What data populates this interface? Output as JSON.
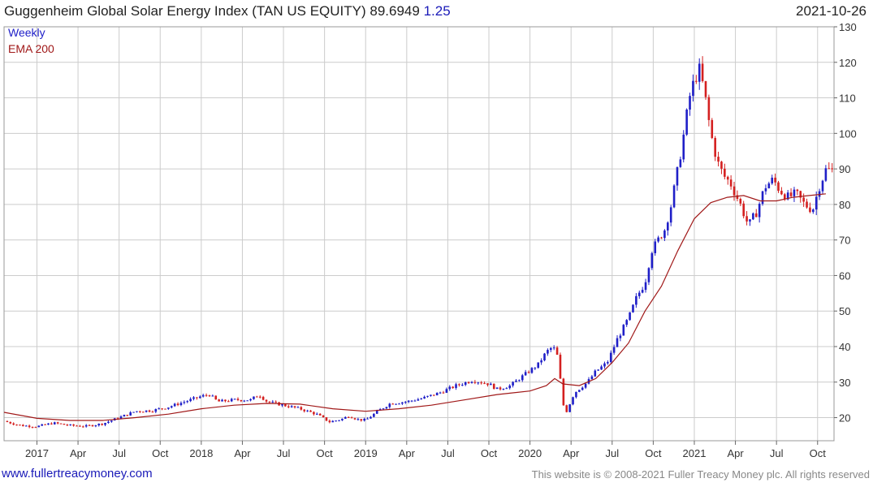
{
  "header": {
    "title": "Guggenheim Global Solar Energy Index (TAN US EQUITY)",
    "price": "89.6949",
    "change": "1.25",
    "date": "2021-10-26"
  },
  "footer": {
    "site": "www.fullertreacymoney.com",
    "copyright": "This website is © 2008-2021 Fuller Treacy Money plc. All rights reserved"
  },
  "colors": {
    "up": "#1f1fc8",
    "down": "#d42020",
    "ema": "#a01818",
    "grid": "#cccccc"
  },
  "chart_data": {
    "type": "candlestick",
    "legend": [
      "Weekly",
      "EMA 200"
    ],
    "legend_colors": [
      "#1f1fc8",
      "#a01818"
    ],
    "y_ticks": [
      20,
      30,
      40,
      50,
      60,
      70,
      80,
      90,
      100,
      110,
      120,
      130
    ],
    "ylim": [
      13.5,
      130
    ],
    "x_ticks": [
      {
        "label": "2017",
        "pos": 2017.0
      },
      {
        "label": "Apr",
        "pos": 2017.25
      },
      {
        "label": "Jul",
        "pos": 2017.5
      },
      {
        "label": "Oct",
        "pos": 2017.75
      },
      {
        "label": "2018",
        "pos": 2018.0
      },
      {
        "label": "Apr",
        "pos": 2018.25
      },
      {
        "label": "Jul",
        "pos": 2018.5
      },
      {
        "label": "Oct",
        "pos": 2018.75
      },
      {
        "label": "2019",
        "pos": 2019.0
      },
      {
        "label": "Apr",
        "pos": 2019.25
      },
      {
        "label": "Jul",
        "pos": 2019.5
      },
      {
        "label": "Oct",
        "pos": 2019.75
      },
      {
        "label": "2020",
        "pos": 2020.0
      },
      {
        "label": "Apr",
        "pos": 2020.25
      },
      {
        "label": "Jul",
        "pos": 2020.5
      },
      {
        "label": "Oct",
        "pos": 2020.75
      },
      {
        "label": "2021",
        "pos": 2021.0
      },
      {
        "label": "Apr",
        "pos": 2021.25
      },
      {
        "label": "Jul",
        "pos": 2021.5
      },
      {
        "label": "Oct",
        "pos": 2021.75
      }
    ],
    "xlim": [
      2016.8,
      2021.85
    ],
    "price_path": [
      [
        2016.8,
        19.0
      ],
      [
        2016.9,
        17.8
      ],
      [
        2017.0,
        17.5
      ],
      [
        2017.1,
        18.5
      ],
      [
        2017.2,
        17.8
      ],
      [
        2017.3,
        17.6
      ],
      [
        2017.4,
        18.3
      ],
      [
        2017.5,
        20.0
      ],
      [
        2017.6,
        21.8
      ],
      [
        2017.7,
        22.0
      ],
      [
        2017.8,
        23.0
      ],
      [
        2017.9,
        24.5
      ],
      [
        2018.0,
        26.0
      ],
      [
        2018.05,
        26.5
      ],
      [
        2018.1,
        24.5
      ],
      [
        2018.2,
        25.0
      ],
      [
        2018.3,
        25.0
      ],
      [
        2018.35,
        26.5
      ],
      [
        2018.4,
        24.5
      ],
      [
        2018.5,
        23.5
      ],
      [
        2018.6,
        22.5
      ],
      [
        2018.7,
        21.0
      ],
      [
        2018.78,
        18.8
      ],
      [
        2018.85,
        19.5
      ],
      [
        2018.9,
        20.5
      ],
      [
        2018.95,
        19.5
      ],
      [
        2019.0,
        19.3
      ],
      [
        2019.08,
        22.0
      ],
      [
        2019.15,
        24.0
      ],
      [
        2019.25,
        24.5
      ],
      [
        2019.35,
        25.5
      ],
      [
        2019.45,
        27.0
      ],
      [
        2019.55,
        29.0
      ],
      [
        2019.65,
        30.5
      ],
      [
        2019.75,
        29.5
      ],
      [
        2019.8,
        28.0
      ],
      [
        2019.88,
        29.0
      ],
      [
        2019.95,
        31.5
      ],
      [
        2020.05,
        35.0
      ],
      [
        2020.1,
        38.5
      ],
      [
        2020.14,
        40.0
      ],
      [
        2020.17,
        37.0
      ],
      [
        2020.2,
        24.0
      ],
      [
        2020.22,
        21.5
      ],
      [
        2020.27,
        27.0
      ],
      [
        2020.35,
        30.0
      ],
      [
        2020.4,
        33.0
      ],
      [
        2020.47,
        35.5
      ],
      [
        2020.53,
        42.0
      ],
      [
        2020.6,
        48.0
      ],
      [
        2020.65,
        54.0
      ],
      [
        2020.7,
        58.0
      ],
      [
        2020.74,
        67.0
      ],
      [
        2020.78,
        70.0
      ],
      [
        2020.82,
        73.0
      ],
      [
        2020.86,
        80.0
      ],
      [
        2020.9,
        90.0
      ],
      [
        2020.93,
        98.0
      ],
      [
        2020.97,
        110.0
      ],
      [
        2021.0,
        115.0
      ],
      [
        2021.03,
        118.0
      ],
      [
        2021.06,
        112.0
      ],
      [
        2021.1,
        100.0
      ],
      [
        2021.14,
        92.0
      ],
      [
        2021.18,
        88.0
      ],
      [
        2021.22,
        86.0
      ],
      [
        2021.28,
        80.0
      ],
      [
        2021.33,
        74.0
      ],
      [
        2021.38,
        78.0
      ],
      [
        2021.43,
        85.0
      ],
      [
        2021.48,
        87.0
      ],
      [
        2021.52,
        84.0
      ],
      [
        2021.57,
        82.0
      ],
      [
        2021.62,
        83.0
      ],
      [
        2021.67,
        80.0
      ],
      [
        2021.72,
        78.5
      ],
      [
        2021.76,
        85.0
      ],
      [
        2021.8,
        89.7
      ]
    ],
    "ema_path": [
      [
        2016.8,
        21.5
      ],
      [
        2017.0,
        19.8
      ],
      [
        2017.2,
        19.2
      ],
      [
        2017.4,
        19.2
      ],
      [
        2017.6,
        20.0
      ],
      [
        2017.8,
        21.0
      ],
      [
        2018.0,
        22.5
      ],
      [
        2018.2,
        23.5
      ],
      [
        2018.4,
        24.0
      ],
      [
        2018.6,
        23.8
      ],
      [
        2018.8,
        22.5
      ],
      [
        2019.0,
        21.8
      ],
      [
        2019.2,
        22.5
      ],
      [
        2019.4,
        23.5
      ],
      [
        2019.6,
        25.0
      ],
      [
        2019.8,
        26.5
      ],
      [
        2020.0,
        27.5
      ],
      [
        2020.1,
        29.0
      ],
      [
        2020.15,
        31.0
      ],
      [
        2020.2,
        29.5
      ],
      [
        2020.3,
        29.0
      ],
      [
        2020.4,
        31.0
      ],
      [
        2020.5,
        35.5
      ],
      [
        2020.6,
        41.0
      ],
      [
        2020.7,
        50.0
      ],
      [
        2020.8,
        57.0
      ],
      [
        2020.9,
        67.0
      ],
      [
        2021.0,
        76.0
      ],
      [
        2021.1,
        80.5
      ],
      [
        2021.2,
        82.0
      ],
      [
        2021.3,
        82.5
      ],
      [
        2021.4,
        81.0
      ],
      [
        2021.5,
        81.0
      ],
      [
        2021.6,
        82.0
      ],
      [
        2021.7,
        82.5
      ],
      [
        2021.8,
        83.0
      ]
    ]
  }
}
